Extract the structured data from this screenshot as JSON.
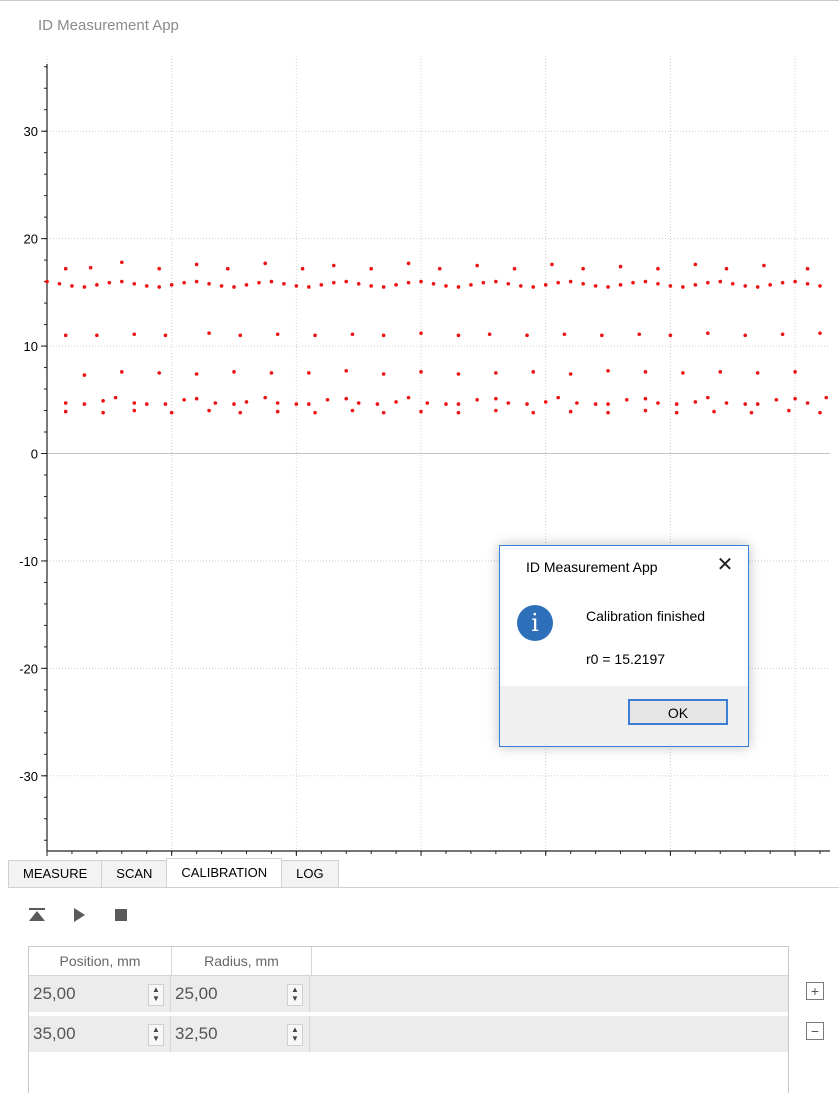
{
  "window": {
    "title": "ID Measurement App"
  },
  "chart_data": {
    "type": "scatter",
    "title": "",
    "xlabel": "",
    "ylabel": "",
    "xlim": [
      0,
      6.28
    ],
    "ylim": [
      -37,
      37
    ],
    "x_ticks": [
      0,
      1,
      2,
      3,
      4,
      5,
      6
    ],
    "y_ticks": [
      30,
      20,
      10,
      0,
      -10,
      -20,
      -30
    ],
    "grid": true,
    "series": [
      {
        "color": "#ee1111",
        "x": [
          0.0,
          0.1,
          0.2,
          0.3,
          0.4,
          0.5,
          0.6,
          0.7,
          0.8,
          0.9,
          1.0,
          1.1,
          1.2,
          1.3,
          1.4,
          1.5,
          1.6,
          1.7,
          1.8,
          1.9,
          2.0,
          2.1,
          2.2,
          2.3,
          2.4,
          2.5,
          2.6,
          2.7,
          2.8,
          2.9,
          3.0,
          3.1,
          3.2,
          3.3,
          3.4,
          3.5,
          3.6,
          3.7,
          3.8,
          3.9,
          4.0,
          4.1,
          4.2,
          4.3,
          4.4,
          4.5,
          4.6,
          4.7,
          4.8,
          4.9,
          5.0,
          5.1,
          5.2,
          5.3,
          5.4,
          5.5,
          5.6,
          5.7,
          5.8,
          5.9,
          6.0,
          6.1,
          6.2
        ],
        "y": [
          16.0,
          15.8,
          15.6,
          15.5,
          15.7,
          15.9,
          16.0,
          15.8,
          15.6,
          15.5,
          15.7,
          15.9,
          16.0,
          15.8,
          15.6,
          15.5,
          15.7,
          15.9,
          16.0,
          15.8,
          15.6,
          15.5,
          15.7,
          15.9,
          16.0,
          15.8,
          15.6,
          15.5,
          15.7,
          15.9,
          16.0,
          15.8,
          15.6,
          15.5,
          15.7,
          15.9,
          16.0,
          15.8,
          15.6,
          15.5,
          15.7,
          15.9,
          16.0,
          15.8,
          15.6,
          15.5,
          15.7,
          15.9,
          16.0,
          15.8,
          15.6,
          15.5,
          15.7,
          15.9,
          16.0,
          15.8,
          15.6,
          15.5,
          15.7,
          15.9,
          16.0,
          15.8,
          15.6
        ]
      },
      {
        "color": "#ee1111",
        "x": [
          0.15,
          0.35,
          0.6,
          0.9,
          1.2,
          1.45,
          1.75,
          2.05,
          2.3,
          2.6,
          2.9,
          3.15,
          3.45,
          3.75,
          4.05,
          4.3,
          4.6,
          4.9,
          5.2,
          5.45,
          5.75,
          6.1
        ],
        "y": [
          17.2,
          17.3,
          17.8,
          17.2,
          17.6,
          17.2,
          17.7,
          17.2,
          17.5,
          17.2,
          17.7,
          17.2,
          17.5,
          17.2,
          17.6,
          17.2,
          17.4,
          17.2,
          17.6,
          17.2,
          17.5,
          17.2
        ]
      },
      {
        "color": "#ee1111",
        "x": [
          0.15,
          0.4,
          0.7,
          0.95,
          1.3,
          1.55,
          1.85,
          2.15,
          2.45,
          2.7,
          3.0,
          3.3,
          3.55,
          3.85,
          4.15,
          4.45,
          4.75,
          5.0,
          5.3,
          5.6,
          5.9,
          6.2
        ],
        "y": [
          11.0,
          11.0,
          11.1,
          11.0,
          11.2,
          11.0,
          11.1,
          11.0,
          11.1,
          11.0,
          11.2,
          11.0,
          11.1,
          11.0,
          11.1,
          11.0,
          11.1,
          11.0,
          11.2,
          11.0,
          11.1,
          11.2
        ]
      },
      {
        "color": "#ee1111",
        "x": [
          0.3,
          0.6,
          0.9,
          1.2,
          1.5,
          1.8,
          2.1,
          2.4,
          2.7,
          3.0,
          3.3,
          3.6,
          3.9,
          4.2,
          4.5,
          4.8,
          5.1,
          5.4,
          5.7,
          6.0
        ],
        "y": [
          7.3,
          7.6,
          7.5,
          7.4,
          7.6,
          7.5,
          7.5,
          7.7,
          7.4,
          7.6,
          7.4,
          7.5,
          7.6,
          7.4,
          7.7,
          7.6,
          7.5,
          7.6,
          7.5,
          7.6
        ]
      },
      {
        "color": "#ee1111",
        "x": [
          0.15,
          0.3,
          0.45,
          0.55,
          0.7,
          0.8,
          0.95,
          1.1,
          1.2,
          1.35,
          1.5,
          1.6,
          1.75,
          1.85,
          2.0,
          2.1,
          2.25,
          2.4,
          2.5,
          2.65,
          2.8,
          2.9,
          3.05,
          3.2,
          3.3,
          3.45,
          3.6,
          3.7,
          3.85,
          4.0,
          4.1,
          4.25,
          4.4,
          4.5,
          4.65,
          4.8,
          4.9,
          5.05,
          5.2,
          5.3,
          5.45,
          5.6,
          5.7,
          5.85,
          6.0,
          6.1,
          6.25
        ],
        "y": [
          4.7,
          4.6,
          4.9,
          5.2,
          4.7,
          4.6,
          4.6,
          5.0,
          5.1,
          4.7,
          4.6,
          4.8,
          5.2,
          4.7,
          4.6,
          4.6,
          5.0,
          5.1,
          4.7,
          4.6,
          4.8,
          5.2,
          4.7,
          4.6,
          4.6,
          5.0,
          5.1,
          4.7,
          4.6,
          4.8,
          5.2,
          4.7,
          4.6,
          4.6,
          5.0,
          5.1,
          4.7,
          4.6,
          4.8,
          5.2,
          4.7,
          4.6,
          4.6,
          5.0,
          5.1,
          4.7,
          5.2
        ]
      },
      {
        "color": "#ee1111",
        "x": [
          0.15,
          0.45,
          0.7,
          1.0,
          1.3,
          1.55,
          1.85,
          2.15,
          2.45,
          2.7,
          3.0,
          3.3,
          3.6,
          3.9,
          4.2,
          4.5,
          4.8,
          5.05,
          5.35,
          5.65,
          5.95,
          6.2
        ],
        "y": [
          3.9,
          3.8,
          4.0,
          3.8,
          4.0,
          3.8,
          3.9,
          3.8,
          4.0,
          3.8,
          3.9,
          3.8,
          4.0,
          3.8,
          3.9,
          3.8,
          4.0,
          3.8,
          3.9,
          3.8,
          4.0,
          3.8
        ]
      }
    ]
  },
  "tabs": [
    {
      "label": "MEASURE"
    },
    {
      "label": "SCAN"
    },
    {
      "label": "CALIBRATION",
      "active": true
    },
    {
      "label": "LOG"
    }
  ],
  "toolbar": {
    "icons": [
      "to-start-icon",
      "play-icon",
      "stop-icon"
    ]
  },
  "table": {
    "headers": [
      "Position, mm",
      "Radius, mm"
    ],
    "rows": [
      {
        "position": "25,00",
        "radius": "25,00"
      },
      {
        "position": "35,00",
        "radius": "32,50"
      }
    ]
  },
  "side_buttons": {
    "add": "+",
    "remove": "−"
  },
  "dialog": {
    "title": "ID Measurement App",
    "icon": "i",
    "message": "Calibration finished",
    "detail": "r0 = 15.2197",
    "ok_label": "OK",
    "close_glyph": "✕"
  },
  "colors": {
    "accent": "#3b7fd9",
    "series": "#ee1111",
    "info_icon": "#2e6fba"
  }
}
